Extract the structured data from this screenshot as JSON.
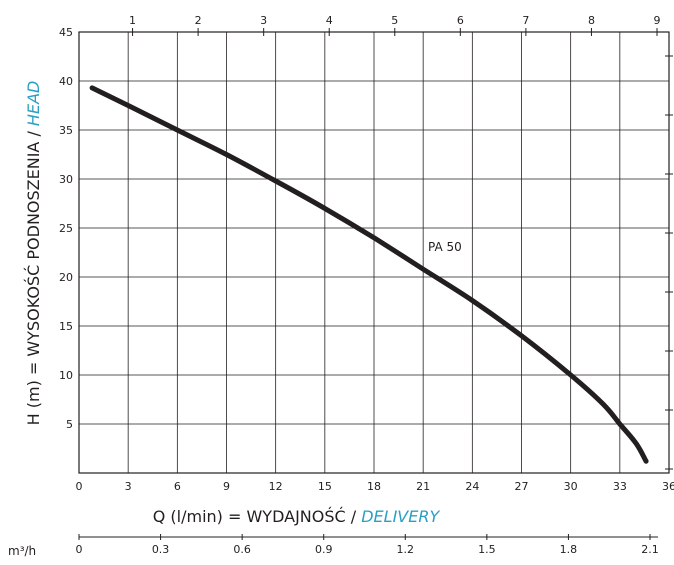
{
  "chart_data": {
    "type": "line",
    "x_label_main": "Q (l/min) = WYDAJNOŚĆ / ",
    "x_label_accent": "DELIVERY",
    "y_label_main": "H (m) = WYSOKOŚĆ PODNOSZENIA / ",
    "y_label_accent": "HEAD",
    "xlim": [
      0,
      36
    ],
    "ylim": [
      0,
      45
    ],
    "x_ticks": [
      0,
      3,
      6,
      9,
      12,
      15,
      18,
      21,
      24,
      27,
      30,
      33,
      36
    ],
    "y_ticks": [
      5,
      10,
      15,
      20,
      25,
      30,
      35,
      40,
      45
    ],
    "top_ticks": [
      "1",
      "2",
      "3",
      "4",
      "5",
      "6",
      "7",
      "8",
      "9"
    ],
    "top_tick_positions_lmin": [
      4,
      8,
      12,
      16,
      20,
      24,
      28,
      32,
      36
    ],
    "m3h_unit": "m³/h",
    "m3h_ticks": [
      "0",
      "0.3",
      "0.6",
      "0.9",
      "1.2",
      "1.5",
      "1.8",
      "2.1"
    ],
    "series": [
      {
        "name": "PA 50",
        "x": [
          0.8,
          3,
          6,
          9,
          12,
          15,
          18,
          21,
          24,
          27,
          30,
          32,
          33,
          34,
          34.6
        ],
        "y": [
          39.3,
          37.5,
          35,
          32.5,
          29.8,
          27,
          24,
          20.8,
          17.6,
          14,
          10,
          7,
          5,
          3,
          1.2
        ]
      }
    ],
    "grid": true,
    "accent_color": "#2a9fc4",
    "line_color": "#231f20"
  }
}
